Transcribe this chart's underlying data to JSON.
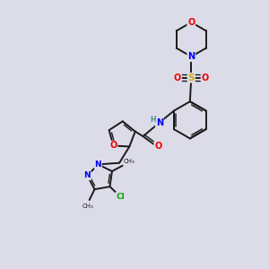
{
  "bg_color": "#dcdce8",
  "bond_color": "#1a1a1a",
  "bond_width": 1.4,
  "atom_colors": {
    "N": "#0000ee",
    "O": "#ee0000",
    "S": "#ccaa00",
    "Cl": "#00aa00",
    "C": "#1a1a1a",
    "H": "#4a9090"
  },
  "font_size": 7.0,
  "fig_bg": "#dcdce8"
}
